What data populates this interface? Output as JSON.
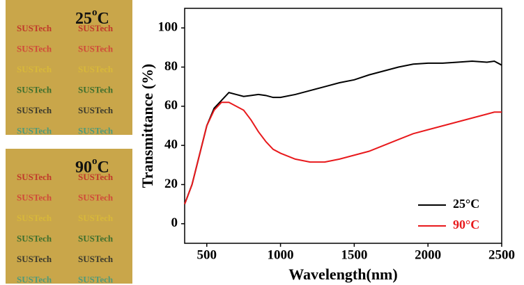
{
  "photos": {
    "text": "SUSTech",
    "row_colors": [
      "#c0392b",
      "#d04a3a",
      "#d8b83a",
      "#3c6e2e",
      "#3a3a2e",
      "#4f9a7a"
    ],
    "labels": [
      {
        "number": "25",
        "sup": "o",
        "unit": "C"
      },
      {
        "number": "90",
        "sup": "o",
        "unit": "C"
      }
    ]
  },
  "chart_data": {
    "type": "line",
    "xlabel": "Wavelength(nm)",
    "ylabel": "Transmittance (%)",
    "x": [
      350,
      400,
      450,
      500,
      550,
      600,
      650,
      700,
      750,
      800,
      850,
      900,
      950,
      1000,
      1100,
      1200,
      1300,
      1400,
      1500,
      1600,
      1700,
      1800,
      1900,
      2000,
      2100,
      2200,
      2300,
      2400,
      2450,
      2500
    ],
    "series": [
      {
        "name": "25°C",
        "color": "#000000",
        "values": [
          10,
          20,
          35,
          50,
          59,
          63,
          67,
          66,
          65,
          65.5,
          66,
          65.5,
          64.5,
          64.5,
          66,
          68,
          70,
          72,
          73.5,
          76,
          78,
          80,
          81.5,
          82,
          82,
          82.5,
          83,
          82.5,
          83,
          81
        ]
      },
      {
        "name": "90°C",
        "color": "#e8191c",
        "values": [
          10,
          20,
          35,
          50,
          58,
          62,
          62,
          60,
          58,
          53,
          47,
          42,
          38,
          36,
          33,
          31.5,
          31.5,
          33,
          35,
          37,
          40,
          43,
          46,
          48,
          50,
          52,
          54,
          56,
          57,
          57
        ]
      }
    ],
    "xlim": [
      350,
      2500
    ],
    "ylim": [
      -10,
      110
    ],
    "xticks": [
      500,
      1000,
      1500,
      2000,
      2500
    ],
    "yticks": [
      0,
      20,
      40,
      60,
      80,
      100
    ],
    "legend": "lower right"
  }
}
